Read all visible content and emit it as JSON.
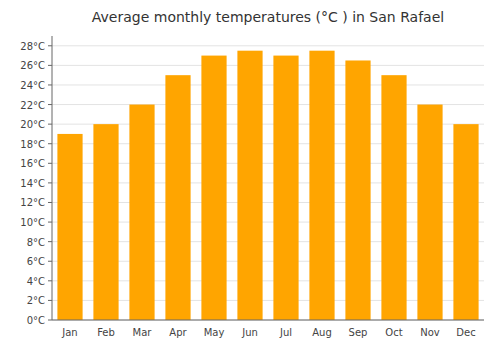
{
  "chart_data": {
    "type": "bar",
    "title": "Average monthly temperatures (°C ) in San Rafael",
    "categories": [
      "Jan",
      "Feb",
      "Mar",
      "Apr",
      "May",
      "Jun",
      "Jul",
      "Aug",
      "Sep",
      "Oct",
      "Nov",
      "Dec"
    ],
    "values": [
      19,
      20,
      22,
      25,
      27,
      27.5,
      27,
      27.5,
      26.5,
      25,
      22,
      20
    ],
    "color": "#FFA500",
    "ylim": [
      0,
      29
    ],
    "yticks": [
      {
        "value": 0,
        "label": "0°C"
      },
      {
        "value": 2,
        "label": "2°C"
      },
      {
        "value": 4,
        "label": "4°C"
      },
      {
        "value": 6,
        "label": "6°C"
      },
      {
        "value": 8,
        "label": "8°C"
      },
      {
        "value": 10,
        "label": "10°C"
      },
      {
        "value": 12,
        "label": "12°C"
      },
      {
        "value": 14,
        "label": "14°C"
      },
      {
        "value": 16,
        "label": "16°C"
      },
      {
        "value": 18,
        "label": "18°C"
      },
      {
        "value": 20,
        "label": "20°C"
      },
      {
        "value": 22,
        "label": "22°C"
      },
      {
        "value": 24,
        "label": "24°C"
      },
      {
        "value": 26,
        "label": "26°C"
      },
      {
        "value": 28,
        "label": "28°C"
      }
    ],
    "grid": true
  }
}
